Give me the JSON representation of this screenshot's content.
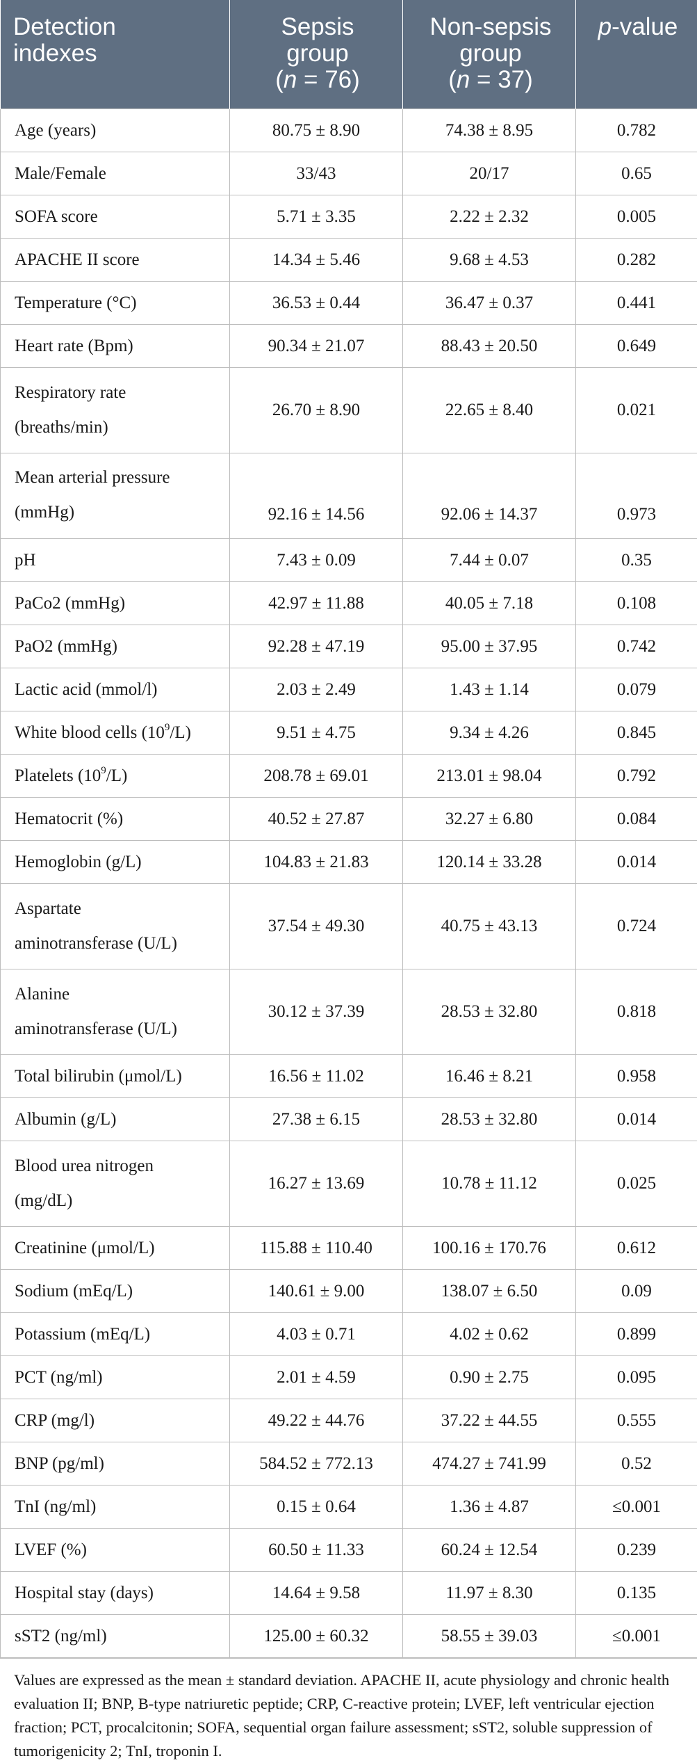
{
  "header": {
    "col1": [
      "Detection",
      "indexes"
    ],
    "col2": [
      "Sepsis",
      "group",
      "(n = 76)"
    ],
    "col3": [
      "Non-sepsis",
      "group",
      "(n = 37)"
    ],
    "col4": "p-value"
  },
  "rows": [
    {
      "label": "Age (years)",
      "sepsis": "80.75 ± 8.90",
      "non_sepsis": "74.38 ± 8.95",
      "p": "0.782"
    },
    {
      "label": "Male/Female",
      "sepsis": "33/43",
      "non_sepsis": "20/17",
      "p": "0.65"
    },
    {
      "label": "SOFA score",
      "sepsis": "5.71 ± 3.35",
      "non_sepsis": "2.22 ± 2.32",
      "p": "0.005"
    },
    {
      "label": "APACHE II score",
      "sepsis": "14.34 ± 5.46",
      "non_sepsis": "9.68 ± 4.53",
      "p": "0.282"
    },
    {
      "label": "Temperature (°C)",
      "sepsis": "36.53 ± 0.44",
      "non_sepsis": "36.47 ± 0.37",
      "p": "0.441"
    },
    {
      "label": "Heart rate (Bpm)",
      "sepsis": "90.34 ± 21.07",
      "non_sepsis": "88.43 ± 20.50",
      "p": "0.649"
    },
    {
      "label": "Respiratory rate (breaths/min)",
      "label_lines": [
        "Respiratory rate",
        "(breaths/min)"
      ],
      "sepsis": "26.70 ± 8.90",
      "non_sepsis": "22.65 ± 8.40",
      "p": "0.021"
    },
    {
      "label": "Mean arterial pressure (mmHg)",
      "label_lines": [
        "Mean arterial pressure",
        "(mmHg)"
      ],
      "sepsis": "92.16 ± 14.56",
      "non_sepsis": "92.06 ± 14.37",
      "p": "0.973"
    },
    {
      "label": "pH",
      "sepsis": "7.43 ± 0.09",
      "non_sepsis": "7.44 ± 0.07",
      "p": "0.35"
    },
    {
      "label": "PaCo2 (mmHg)",
      "sepsis": "42.97 ± 11.88",
      "non_sepsis": "40.05 ± 7.18",
      "p": "0.108"
    },
    {
      "label": "PaO2 (mmHg)",
      "sepsis": "92.28 ± 47.19",
      "non_sepsis": "95.00 ± 37.95",
      "p": "0.742"
    },
    {
      "label": "Lactic acid (mmol/l)",
      "sepsis": "2.03 ± 2.49",
      "non_sepsis": "1.43 ± 1.14",
      "p": "0.079"
    },
    {
      "label": "White blood cells (10⁹/L)",
      "label_pre": "White blood cells (10",
      "label_sup": "9",
      "label_post": "/L)",
      "sepsis": "9.51 ± 4.75",
      "non_sepsis": "9.34 ± 4.26",
      "p": "0.845"
    },
    {
      "label": "Platelets (10⁹/L)",
      "label_pre": "Platelets (10",
      "label_sup": "9",
      "label_post": "/L)",
      "sepsis": "208.78 ± 69.01",
      "non_sepsis": "213.01 ± 98.04",
      "p": "0.792"
    },
    {
      "label": "Hematocrit (%)",
      "sepsis": "40.52 ± 27.87",
      "non_sepsis": "32.27 ± 6.80",
      "p": "0.084"
    },
    {
      "label": "Hemoglobin (g/L)",
      "sepsis": "104.83 ± 21.83",
      "non_sepsis": "120.14 ± 33.28",
      "p": "0.014"
    },
    {
      "label": "Aspartate aminotransferase (U/L)",
      "label_lines": [
        "Aspartate",
        "aminotransferase (U/L)"
      ],
      "sepsis": "37.54 ± 49.30",
      "non_sepsis": "40.75 ± 43.13",
      "p": "0.724"
    },
    {
      "label": "Alanine aminotransferase (U/L)",
      "label_lines": [
        "Alanine",
        "aminotransferase (U/L)"
      ],
      "sepsis": "30.12 ± 37.39",
      "non_sepsis": "28.53 ± 32.80",
      "p": "0.818"
    },
    {
      "label": "Total bilirubin (μmol/L)",
      "sepsis": "16.56 ± 11.02",
      "non_sepsis": "16.46 ± 8.21",
      "p": "0.958"
    },
    {
      "label": "Albumin (g/L)",
      "sepsis": "27.38 ± 6.15",
      "non_sepsis": "28.53 ± 32.80",
      "p": "0.014"
    },
    {
      "label": "Blood urea nitrogen (mg/dL)",
      "label_lines": [
        "Blood urea nitrogen",
        "(mg/dL)"
      ],
      "sepsis": "16.27 ± 13.69",
      "non_sepsis": "10.78 ± 11.12",
      "p": "0.025"
    },
    {
      "label": "Creatinine (μmol/L)",
      "sepsis": "115.88 ± 110.40",
      "non_sepsis": "100.16 ± 170.76",
      "p": "0.612"
    },
    {
      "label": "Sodium (mEq/L)",
      "sepsis": "140.61 ± 9.00",
      "non_sepsis": "138.07 ± 6.50",
      "p": "0.09"
    },
    {
      "label": "Potassium (mEq/L)",
      "sepsis": "4.03 ± 0.71",
      "non_sepsis": "4.02 ± 0.62",
      "p": "0.899"
    },
    {
      "label": "PCT (ng/ml)",
      "sepsis": "2.01 ± 4.59",
      "non_sepsis": "0.90 ± 2.75",
      "p": "0.095"
    },
    {
      "label": "CRP (mg/l)",
      "sepsis": "49.22 ± 44.76",
      "non_sepsis": "37.22 ± 44.55",
      "p": "0.555"
    },
    {
      "label": "BNP (pg/ml)",
      "sepsis": "584.52 ± 772.13",
      "non_sepsis": "474.27 ± 741.99",
      "p": "0.52"
    },
    {
      "label": "TnI (ng/ml)",
      "sepsis": "0.15 ± 0.64",
      "non_sepsis": "1.36 ± 4.87",
      "p": "≤0.001"
    },
    {
      "label": "LVEF (%)",
      "sepsis": "60.50 ± 11.33",
      "non_sepsis": "60.24 ± 12.54",
      "p": "0.239"
    },
    {
      "label": "Hospital stay (days)",
      "sepsis": "14.64 ± 9.58",
      "non_sepsis": "11.97 ± 8.30",
      "p": "0.135"
    },
    {
      "label": "sST2 (ng/ml)",
      "sepsis": "125.00 ± 60.32",
      "non_sepsis": "58.55 ± 39.03",
      "p": "≤0.001"
    }
  ],
  "footnote": "Values are expressed as the mean ± standard deviation. APACHE II, acute physiology and chronic health evaluation II; BNP, B-type natriuretic peptide; CRP, C-reactive protein; LVEF, left ventricular ejection fraction; PCT, procalcitonin; SOFA, sequential organ failure assessment; sST2, soluble suppression of tumorigenicity 2; TnI, troponin I."
}
